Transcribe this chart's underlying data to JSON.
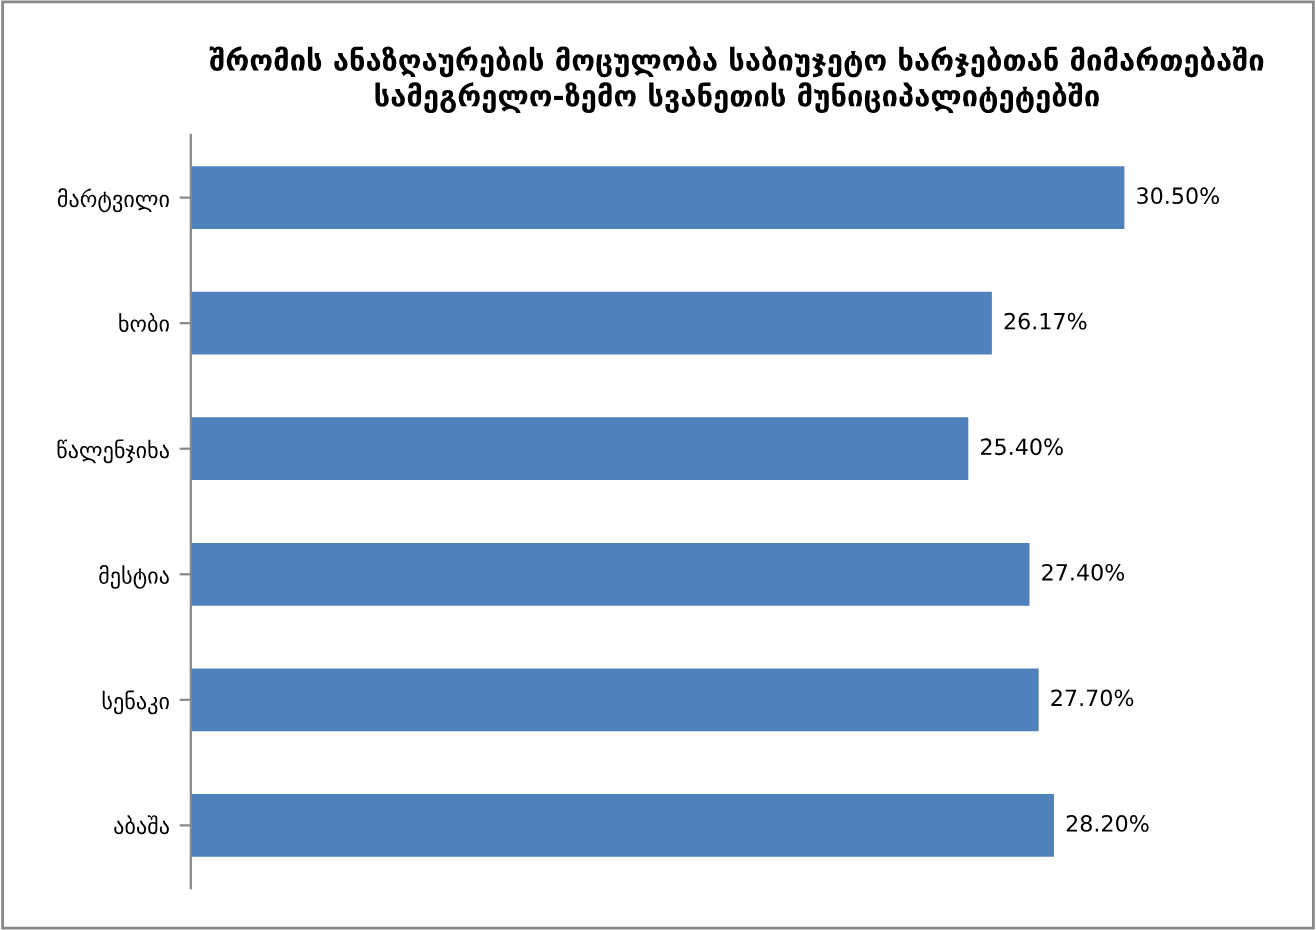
{
  "chart_data": {
    "type": "bar",
    "orientation": "horizontal",
    "title": "შრომის ანაზღაურების მოცულობა საბიუჯეტო ხარჯებთან მიმართებაში სამეგრელო-ზემო სვანეთის მუნიციპალიტეტებში",
    "categories": [
      "მარტვილი",
      "ხობი",
      "წალენჯიხა",
      "მესტია",
      "სენაკი",
      "აბაშა"
    ],
    "values": [
      30.5,
      26.17,
      25.4,
      27.4,
      27.7,
      28.2
    ],
    "value_labels": [
      "30.50%",
      "26.17%",
      "25.40%",
      "27.40%",
      "27.70%",
      "28.20%"
    ],
    "color": "#4f81bd",
    "grid": false,
    "legend": false,
    "tick_labels": "y"
  }
}
